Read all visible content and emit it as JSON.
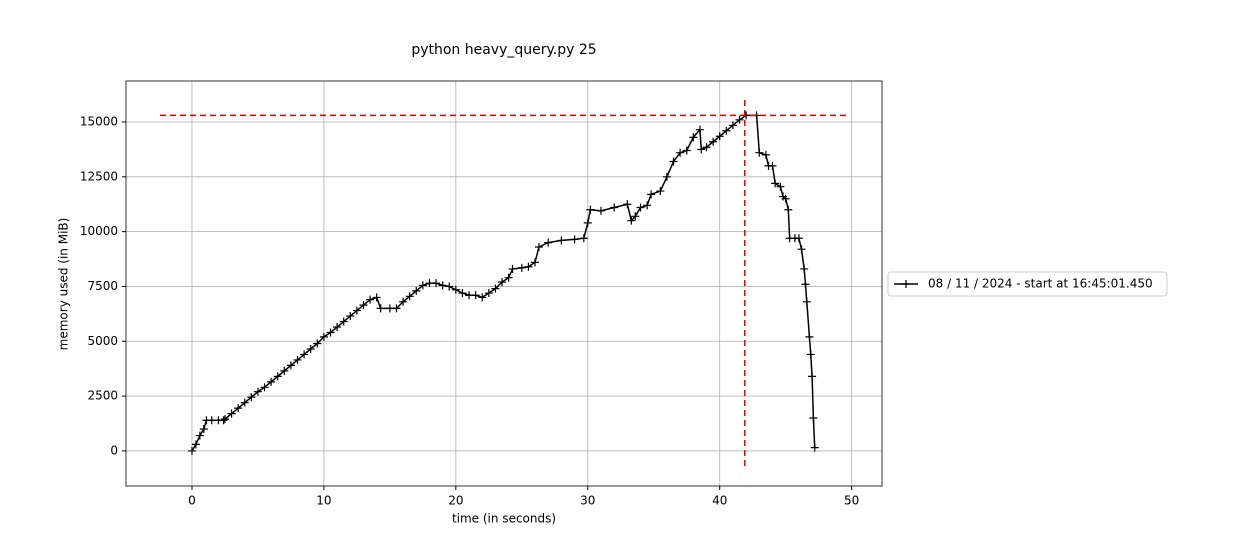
{
  "chart_data": {
    "type": "line",
    "title": "python heavy_query.py 25",
    "x_label": "time (in seconds)",
    "y_label": "memory used (in MiB)",
    "x": [
      0,
      0.3,
      0.6,
      0.9,
      1.1,
      1.5,
      2,
      2.4,
      2.5,
      3,
      3.5,
      4,
      4.5,
      5,
      5.5,
      6,
      6.5,
      7,
      7.5,
      8,
      8.5,
      9,
      9.5,
      10,
      10.5,
      11,
      11.5,
      12,
      12.5,
      13,
      13.5,
      14,
      14.3,
      15,
      15.5,
      16,
      16.5,
      17,
      17.5,
      18,
      18.5,
      19,
      19.5,
      20,
      20.5,
      21,
      21.5,
      22,
      22.5,
      23,
      23.5,
      24,
      24.3,
      25,
      25.5,
      26,
      26.3,
      27,
      28,
      29,
      29.7,
      30,
      30.2,
      31,
      32,
      33,
      33.3,
      33.6,
      34,
      34.5,
      34.8,
      35.5,
      36,
      36.5,
      37,
      37.5,
      38,
      38.5,
      38.6,
      39,
      39.5,
      40,
      40.5,
      41,
      41.5,
      42,
      42.8,
      43,
      43.5,
      43.7,
      44,
      44.2,
      44.6,
      44.8,
      45,
      45.2,
      45.3,
      45.7,
      46,
      46.2,
      46.4,
      46.5,
      46.6,
      46.8,
      46.9,
      47,
      47.1,
      47.2
    ],
    "series": [
      {
        "name": "08 / 11 / 2024 - start at 16:45:01.450",
        "color": "#000000",
        "values": [
          0,
          300,
          700,
          1000,
          1400,
          1400,
          1400,
          1400,
          1450,
          1700,
          1950,
          2200,
          2450,
          2700,
          2900,
          3150,
          3400,
          3650,
          3900,
          4150,
          4400,
          4650,
          4900,
          5200,
          5400,
          5650,
          5900,
          6150,
          6400,
          6650,
          6900,
          7000,
          6500,
          6500,
          6500,
          6800,
          7050,
          7300,
          7550,
          7650,
          7650,
          7550,
          7500,
          7350,
          7200,
          7100,
          7100,
          7000,
          7200,
          7400,
          7700,
          7900,
          8300,
          8350,
          8400,
          8600,
          9300,
          9500,
          9600,
          9650,
          9700,
          10400,
          11000,
          10950,
          11100,
          11250,
          10500,
          10700,
          11100,
          11200,
          11700,
          11850,
          12500,
          13200,
          13600,
          13700,
          14300,
          14650,
          13750,
          13850,
          14100,
          14350,
          14600,
          14850,
          15100,
          15300,
          15300,
          13600,
          13500,
          13000,
          13000,
          12200,
          12050,
          11600,
          11500,
          11000,
          9700,
          9700,
          9700,
          9200,
          8300,
          7600,
          6800,
          5200,
          4400,
          3400,
          1500,
          150
        ]
      }
    ],
    "xlim": [
      -5,
      52.3
    ],
    "ylim": [
      -1600,
      16870
    ],
    "xticks": [
      0,
      10,
      20,
      30,
      40,
      50
    ],
    "yticks": [
      0,
      2500,
      5000,
      7500,
      10000,
      12500,
      15000
    ],
    "grid": true,
    "peak_x": 41.9,
    "peak_y": 15300,
    "peak_color": "#e00000"
  }
}
